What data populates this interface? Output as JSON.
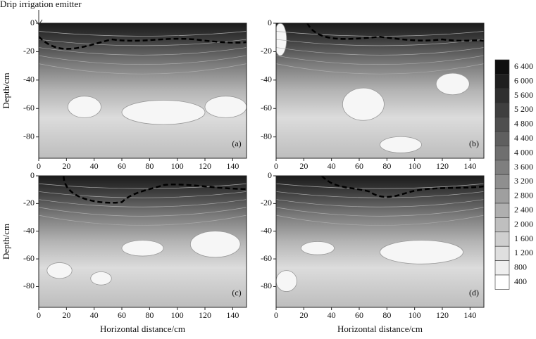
{
  "chart_data": [
    {
      "type": "contour",
      "panel_label": "(a)",
      "annotation": "Drip irrigation emitter",
      "y_label": "Depth/cm",
      "xlim": [
        0,
        150
      ],
      "ylim": [
        -95,
        0
      ],
      "xticks": [
        0,
        20,
        40,
        60,
        80,
        100,
        120,
        140
      ],
      "yticks": [
        0,
        -20,
        -40,
        -60,
        -80
      ],
      "colorbar": {
        "ticks": [
          {
            "value": 6400,
            "label": "6 400"
          },
          {
            "value": 6000,
            "label": "6 000"
          },
          {
            "value": 5600,
            "label": "5 600"
          },
          {
            "value": 5200,
            "label": "5 200"
          },
          {
            "value": 4800,
            "label": "4 800"
          },
          {
            "value": 4400,
            "label": "4 400"
          },
          {
            "value": 4000,
            "label": "4 000"
          },
          {
            "value": 3600,
            "label": "3 600"
          },
          {
            "value": 3200,
            "label": "3 200"
          },
          {
            "value": 2800,
            "label": "2 800"
          },
          {
            "value": 2400,
            "label": "2 400"
          },
          {
            "value": 2000,
            "label": "2 000"
          },
          {
            "value": 1600,
            "label": "1 600"
          },
          {
            "value": 1200,
            "label": "1 200"
          },
          800,
          400
        ]
      }
    },
    {
      "type": "contour",
      "panel_label": "(b)",
      "xlim": [
        0,
        150
      ],
      "ylim": [
        -95,
        0
      ],
      "xticks": [
        0,
        20,
        40,
        60,
        80,
        100,
        120,
        140
      ],
      "yticks": [
        0,
        -20,
        -40,
        -60,
        -80
      ]
    },
    {
      "type": "contour",
      "panel_label": "(c)",
      "y_label": "Depth/cm",
      "x_label": "Horizontal distance/cm",
      "xlim": [
        0,
        150
      ],
      "ylim": [
        -95,
        0
      ],
      "xticks": [
        0,
        20,
        40,
        60,
        80,
        100,
        120,
        140
      ],
      "yticks": [
        0,
        -20,
        -40,
        -60,
        -80
      ]
    },
    {
      "type": "contour",
      "panel_label": "(d)",
      "x_label": "Horizontal distance/cm",
      "xlim": [
        0,
        150
      ],
      "ylim": [
        -95,
        0
      ],
      "xticks": [
        0,
        20,
        40,
        60,
        80,
        100,
        120,
        140
      ],
      "yticks": [
        0,
        -20,
        -40,
        -60,
        -80
      ]
    }
  ]
}
